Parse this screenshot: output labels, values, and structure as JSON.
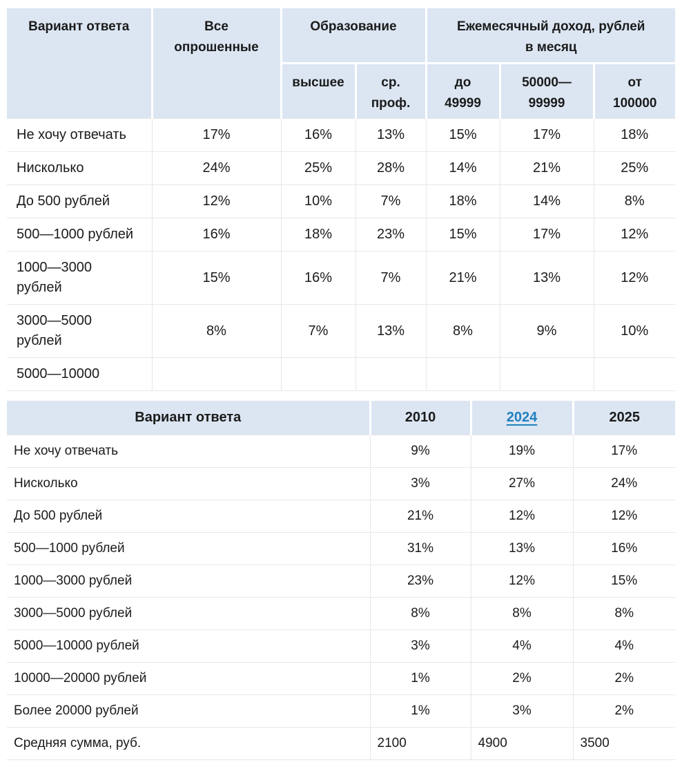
{
  "colors": {
    "header_bg": "#dce6f2",
    "border": "#e7e7e7",
    "text": "#1b1b1b",
    "link_blue": "#2080c0"
  },
  "table1": {
    "header": {
      "answer": "Вариант ответа",
      "all": "Все\nопрошенные",
      "education_group": "Образование",
      "income_group": "Ежемесячный доход, рублей\nв месяц",
      "sub": [
        "высшее",
        "ср.\nпроф.",
        "до\n49999",
        "50000—\n99999",
        "от\n100000"
      ]
    },
    "rows": [
      {
        "label": "Не хочу отвечать",
        "values": [
          "17%",
          "16%",
          "13%",
          "15%",
          "17%",
          "18%"
        ]
      },
      {
        "label": "Нисколько",
        "values": [
          "24%",
          "25%",
          "28%",
          "14%",
          "21%",
          "25%"
        ]
      },
      {
        "label": "До 500 рублей",
        "values": [
          "12%",
          "10%",
          "7%",
          "18%",
          "14%",
          "8%"
        ]
      },
      {
        "label": "500—1000 рублей",
        "values": [
          "16%",
          "18%",
          "23%",
          "15%",
          "17%",
          "12%"
        ]
      },
      {
        "label": "1000—3000\nрублей",
        "values": [
          "15%",
          "16%",
          "7%",
          "21%",
          "13%",
          "12%"
        ]
      },
      {
        "label": "3000—5000\nрублей",
        "values": [
          "8%",
          "7%",
          "13%",
          "8%",
          "9%",
          "10%"
        ]
      },
      {
        "label": "5000—10000",
        "values": [
          "",
          "",
          "",
          "",
          "",
          ""
        ]
      }
    ]
  },
  "table2": {
    "header": {
      "answer": "Вариант ответа",
      "years": [
        "2010",
        "2024",
        "2025"
      ]
    },
    "rows": [
      {
        "label": "Не хочу отвечать",
        "values": [
          "9%",
          "19%",
          "17%"
        ]
      },
      {
        "label": "Нисколько",
        "values": [
          "3%",
          "27%",
          "24%"
        ]
      },
      {
        "label": "До 500 рублей",
        "values": [
          "21%",
          "12%",
          "12%"
        ]
      },
      {
        "label": "500—1000 рублей",
        "values": [
          "31%",
          "13%",
          "16%"
        ]
      },
      {
        "label": "1000—3000 рублей",
        "values": [
          "23%",
          "12%",
          "15%"
        ]
      },
      {
        "label": "3000—5000 рублей",
        "values": [
          "8%",
          "8%",
          "8%"
        ]
      },
      {
        "label": "5000—10000 рублей",
        "values": [
          "3%",
          "4%",
          "4%"
        ]
      },
      {
        "label": "10000—20000 рублей",
        "values": [
          "1%",
          "2%",
          "2%"
        ]
      },
      {
        "label": "Более 20000 рублей",
        "values": [
          "1%",
          "3%",
          "2%"
        ]
      },
      {
        "label": "Средняя сумма, руб.",
        "values": [
          "2100",
          "4900",
          "3500"
        ],
        "align": "left"
      }
    ]
  }
}
